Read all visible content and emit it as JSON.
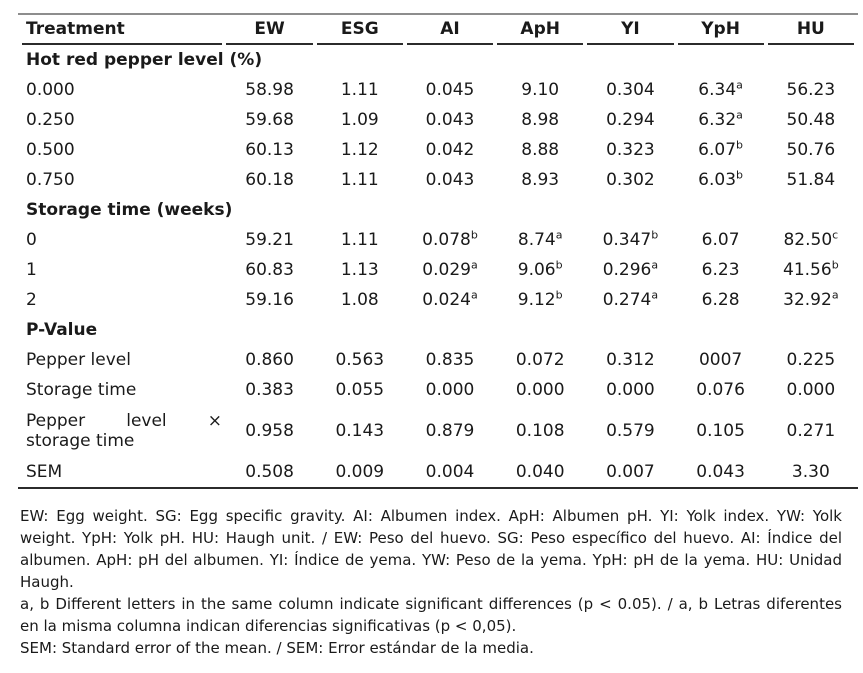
{
  "colors": {
    "text": "#1a1a1a",
    "rule_top": "#8d8d8d",
    "rule_dark": "#2b2b2b",
    "background": "#ffffff"
  },
  "table": {
    "columns": [
      "Treatment",
      "EW",
      "ESG",
      "AI",
      "ApH",
      "YI",
      "YpH",
      "HU"
    ],
    "sections": [
      {
        "header": "Hot red pepper level (%)",
        "rows": [
          {
            "label": "0.000",
            "cells": [
              "58.98",
              "1.11",
              "0.045",
              "9.10",
              "0.304",
              {
                "v": "6.34",
                "s": "a"
              },
              "56.23"
            ]
          },
          {
            "label": "0.250",
            "cells": [
              "59.68",
              "1.09",
              "0.043",
              "8.98",
              "0.294",
              {
                "v": "6.32",
                "s": "a"
              },
              "50.48"
            ]
          },
          {
            "label": "0.500",
            "cells": [
              "60.13",
              "1.12",
              "0.042",
              "8.88",
              "0.323",
              {
                "v": "6.07",
                "s": "b"
              },
              "50.76"
            ]
          },
          {
            "label": "0.750",
            "cells": [
              "60.18",
              "1.11",
              "0.043",
              "8.93",
              "0.302",
              {
                "v": "6.03",
                "s": "b"
              },
              "51.84"
            ]
          }
        ]
      },
      {
        "header": "Storage time (weeks)",
        "rows": [
          {
            "label": "0",
            "cells": [
              "59.21",
              "1.11",
              {
                "v": "0.078",
                "s": "b"
              },
              {
                "v": "8.74",
                "s": "a"
              },
              {
                "v": "0.347",
                "s": "b"
              },
              "6.07",
              {
                "v": "82.50",
                "s": "c"
              }
            ]
          },
          {
            "label": "1",
            "cells": [
              "60.83",
              "1.13",
              {
                "v": "0.029",
                "s": "a"
              },
              {
                "v": "9.06",
                "s": "b"
              },
              {
                "v": "0.296",
                "s": "a"
              },
              "6.23",
              {
                "v": "41.56",
                "s": "b"
              }
            ]
          },
          {
            "label": "2",
            "cells": [
              "59.16",
              "1.08",
              {
                "v": "0.024",
                "s": "a"
              },
              {
                "v": "9.12",
                "s": "b"
              },
              {
                "v": "0.274",
                "s": "a"
              },
              "6.28",
              {
                "v": "32.92",
                "s": "a"
              }
            ]
          }
        ]
      },
      {
        "header": "P-Value",
        "rows": [
          {
            "label": "Pepper level",
            "cells": [
              "0.860",
              "0.563",
              "0.835",
              "0.072",
              "0.312",
              "0007",
              "0.225"
            ]
          },
          {
            "label": "Storage time",
            "cells": [
              "0.383",
              "0.055",
              "0.000",
              "0.000",
              "0.000",
              "0.076",
              "0.000"
            ]
          },
          {
            "label": "Pepper level × storage time",
            "wrap": true,
            "cells": [
              "0.958",
              "0.143",
              "0.879",
              "0.108",
              "0.579",
              "0.105",
              "0.271"
            ]
          },
          {
            "label": "SEM",
            "cells": [
              "0.508",
              "0.009",
              "0.004",
              "0.040",
              "0.007",
              "0.043",
              "3.30"
            ]
          }
        ]
      }
    ]
  },
  "footnotes": [
    "EW: Egg weight. SG: Egg specific gravity. AI: Albumen index. ApH: Albumen pH. YI: Yolk index. YW: Yolk weight. YpH: Yolk pH. HU: Haugh unit. / EW: Peso del huevo. SG: Peso específico del huevo. AI: Índice del albumen. ApH: pH del albumen. YI: Índice de yema. YW: Peso de la yema. YpH: pH de la yema. HU: Unidad Haugh.",
    "a, b Different letters in the same column indicate significant differences (p < 0.05). / a, b Letras diferentes en la misma columna indican diferencias significativas (p < 0,05).",
    "SEM: Standard error of the mean. / SEM: Error estándar de la media."
  ]
}
